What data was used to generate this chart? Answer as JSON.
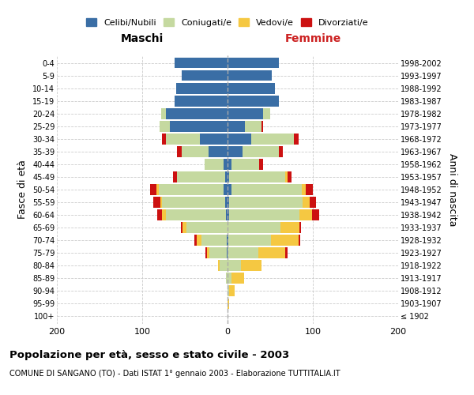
{
  "age_groups": [
    "100+",
    "95-99",
    "90-94",
    "85-89",
    "80-84",
    "75-79",
    "70-74",
    "65-69",
    "60-64",
    "55-59",
    "50-54",
    "45-49",
    "40-44",
    "35-39",
    "30-34",
    "25-29",
    "20-24",
    "15-19",
    "10-14",
    "5-9",
    "0-4"
  ],
  "birth_years": [
    "≤ 1902",
    "1903-1907",
    "1908-1912",
    "1913-1917",
    "1918-1922",
    "1923-1927",
    "1928-1932",
    "1933-1937",
    "1938-1942",
    "1943-1947",
    "1948-1952",
    "1953-1957",
    "1958-1962",
    "1963-1967",
    "1968-1972",
    "1973-1977",
    "1978-1982",
    "1983-1987",
    "1988-1992",
    "1993-1997",
    "1998-2002"
  ],
  "male": {
    "celibi": [
      0,
      0,
      0,
      0,
      0,
      1,
      1,
      0,
      2,
      3,
      5,
      3,
      5,
      22,
      32,
      68,
      72,
      62,
      60,
      54,
      62
    ],
    "coniugati": [
      0,
      0,
      0,
      2,
      9,
      20,
      30,
      48,
      70,
      74,
      76,
      56,
      22,
      32,
      40,
      12,
      6,
      0,
      0,
      0,
      0
    ],
    "vedovi": [
      0,
      0,
      0,
      0,
      2,
      3,
      5,
      5,
      5,
      2,
      2,
      0,
      0,
      0,
      0,
      0,
      0,
      0,
      0,
      0,
      0
    ],
    "divorziati": [
      0,
      0,
      0,
      0,
      0,
      2,
      3,
      2,
      5,
      8,
      8,
      5,
      0,
      5,
      5,
      0,
      0,
      0,
      0,
      0,
      0
    ]
  },
  "female": {
    "nubili": [
      0,
      0,
      0,
      0,
      0,
      0,
      1,
      0,
      2,
      2,
      5,
      2,
      5,
      18,
      28,
      20,
      42,
      60,
      56,
      52,
      60
    ],
    "coniugate": [
      0,
      0,
      2,
      5,
      16,
      36,
      50,
      62,
      82,
      86,
      82,
      66,
      32,
      42,
      50,
      20,
      8,
      0,
      0,
      0,
      0
    ],
    "vedove": [
      0,
      2,
      6,
      14,
      24,
      32,
      32,
      22,
      15,
      8,
      5,
      2,
      0,
      0,
      0,
      0,
      0,
      0,
      0,
      0,
      0
    ],
    "divorziate": [
      0,
      0,
      0,
      0,
      0,
      2,
      2,
      2,
      8,
      8,
      8,
      5,
      5,
      5,
      5,
      2,
      0,
      0,
      0,
      0,
      0
    ]
  },
  "colors": {
    "celibi": "#3a6ea5",
    "coniugati": "#c5d9a0",
    "vedovi": "#f5c842",
    "divorziati": "#cc1111"
  },
  "xlim": 200,
  "title": "Popolazione per età, sesso e stato civile - 2003",
  "subtitle": "COMUNE DI SANGANO (TO) - Dati ISTAT 1° gennaio 2003 - Elaborazione TUTTITALIA.IT",
  "xlabel_left": "Maschi",
  "xlabel_right": "Femmine",
  "ylabel_left": "Fasce di età",
  "ylabel_right": "Anni di nascita"
}
